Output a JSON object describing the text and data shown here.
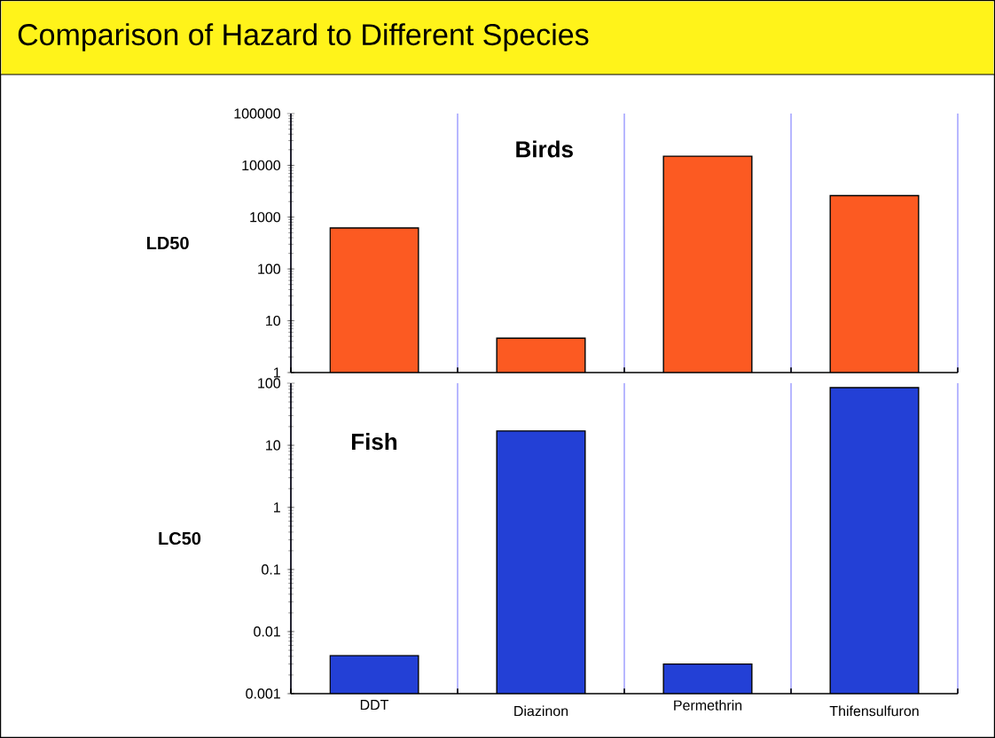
{
  "chart_data": [
    {
      "type": "bar",
      "title": "Comparison of Hazard to Different Species",
      "ylabel": "LD50",
      "annotations": [
        "Birds"
      ],
      "categories": [
        null,
        null,
        null,
        null
      ],
      "values": [
        620,
        4.6,
        15000,
        2600
      ],
      "color": "#fc5a22",
      "log": "y",
      "ylim": [
        1,
        100000
      ],
      "yticks": [
        1,
        10,
        100,
        1000,
        10000,
        100000
      ],
      "grid": "x",
      "tick_labels": "y"
    },
    {
      "type": "bar",
      "ylabel": "LC50",
      "annotations": [
        "Fish"
      ],
      "categories": [
        "DDT",
        "Diazinon",
        "Permethrin",
        "Thifensulfuron"
      ],
      "values": [
        0.0041,
        17,
        0.003,
        85
      ],
      "color": "#2340d6",
      "log": "y",
      "ylim": [
        0.001,
        100
      ],
      "yticks": [
        0.001,
        0.01,
        0.1,
        1,
        10,
        100
      ],
      "grid": "x"
    }
  ]
}
